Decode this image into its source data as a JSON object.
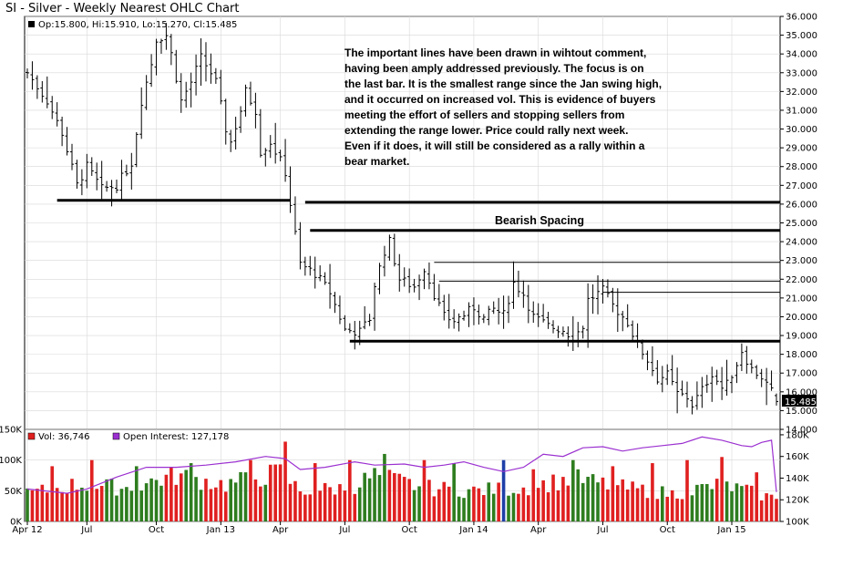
{
  "title": "SI - Silver - Weekly Nearest OHLC Chart",
  "ohlc_label": "Op:15.800, Hi:15.910, Lo:15.270, Cl:15.485",
  "last_price_label": "15.485",
  "note_lines": [
    "The important lines have been drawn in wihtout comment,",
    "having been amply addressed previously.  The focus is on",
    "the last bar.  It is the smallest range since the Jan swing high,",
    "and it occurred on increased vol.  This is evidence of buyers",
    "meeting the effort of sellers and stopping sellers from",
    "extending the range lower.  Price could rally next week.",
    "Even if it does, it will still be considered as a rally within a",
    "bear market."
  ],
  "bearish_spacing_label": "Bearish Spacing",
  "vol_legend": "Vol: 36,746",
  "oi_legend": "Open Interest: 127,178",
  "colors": {
    "up_volume": "#2e7d1f",
    "down_volume": "#e02020",
    "open_interest": "#9b30d0",
    "price_bars": "#000000",
    "neutral_volume": "#1f3fa8"
  },
  "chart_data": [
    {
      "type": "ohlc",
      "title": "SI - Silver - Weekly Nearest OHLC Chart",
      "ylim": [
        14,
        36
      ],
      "y_ticks": [
        "36.000",
        "35.000",
        "34.000",
        "33.000",
        "32.000",
        "31.000",
        "30.000",
        "29.000",
        "28.000",
        "27.000",
        "26.000",
        "25.000",
        "24.000",
        "23.000",
        "22.000",
        "21.000",
        "20.000",
        "19.000",
        "18.000",
        "17.000",
        "16.000",
        "15.000",
        "14.000"
      ],
      "x_ticks": [
        "Apr 12",
        "Jul",
        "Oct",
        "Jan 13",
        "Apr",
        "Jul",
        "Oct",
        "Jan 14",
        "Apr",
        "Jul",
        "Oct",
        "Jan 15"
      ],
      "x_tick_week": [
        0,
        12,
        26,
        39,
        51,
        64,
        77,
        90,
        103,
        116,
        129,
        142
      ],
      "weeks": 152,
      "anchors": [
        [
          0,
          33.0
        ],
        [
          4,
          31.5
        ],
        [
          7,
          29.8
        ],
        [
          10,
          27.0
        ],
        [
          12,
          28.0
        ],
        [
          15,
          26.8
        ],
        [
          18,
          27.0
        ],
        [
          21,
          28.2
        ],
        [
          23,
          31.5
        ],
        [
          25,
          33.5
        ],
        [
          26,
          34.8
        ],
        [
          28,
          35.0
        ],
        [
          29,
          34.0
        ],
        [
          31,
          31.5
        ],
        [
          33,
          32.5
        ],
        [
          35,
          33.8
        ],
        [
          37,
          33.0
        ],
        [
          38,
          32.5
        ],
        [
          40,
          30.0
        ],
        [
          41,
          29.3
        ],
        [
          43,
          31.0
        ],
        [
          44,
          32.0
        ],
        [
          46,
          31.0
        ],
        [
          47,
          28.8
        ],
        [
          49,
          29.3
        ],
        [
          51,
          28.3
        ],
        [
          52,
          27.7
        ],
        [
          53,
          26.0
        ],
        [
          55,
          22.8
        ],
        [
          58,
          22.3
        ],
        [
          61,
          21.3
        ],
        [
          64,
          19.3
        ],
        [
          67,
          19.2
        ],
        [
          69,
          19.9
        ],
        [
          70,
          21.7
        ],
        [
          72,
          23.5
        ],
        [
          73,
          24.0
        ],
        [
          75,
          22.0
        ],
        [
          78,
          21.6
        ],
        [
          80,
          22.6
        ],
        [
          82,
          21.2
        ],
        [
          84,
          20.0
        ],
        [
          86,
          19.8
        ],
        [
          88,
          20.1
        ],
        [
          90,
          20.5
        ],
        [
          92,
          19.9
        ],
        [
          94,
          20.4
        ],
        [
          96,
          20.1
        ],
        [
          98,
          21.8
        ],
        [
          100,
          21.2
        ],
        [
          102,
          20.0
        ],
        [
          105,
          19.5
        ],
        [
          108,
          19.3
        ],
        [
          110,
          18.9
        ],
        [
          112,
          19.5
        ],
        [
          113,
          20.9
        ],
        [
          116,
          21.4
        ],
        [
          118,
          20.6
        ],
        [
          121,
          19.7
        ],
        [
          123,
          18.5
        ],
        [
          125,
          17.7
        ],
        [
          127,
          16.7
        ],
        [
          129,
          16.9
        ],
        [
          131,
          15.9
        ],
        [
          133,
          15.7
        ],
        [
          134,
          15.3
        ],
        [
          136,
          16.1
        ],
        [
          138,
          17.0
        ],
        [
          140,
          16.2
        ],
        [
          141,
          16.4
        ],
        [
          143,
          17.5
        ],
        [
          144,
          18.2
        ],
        [
          146,
          17.2
        ],
        [
          148,
          16.8
        ],
        [
          150,
          16.0
        ],
        [
          151,
          15.485
        ]
      ],
      "last_bar": {
        "open": 15.8,
        "high": 15.91,
        "low": 15.27,
        "close": 15.485
      },
      "horizontal_lines": [
        {
          "value": 26.2,
          "from_week": 6,
          "to_week": 53,
          "weight": "heavy"
        },
        {
          "value": 26.1,
          "from_week": 56,
          "to_week": 152,
          "weight": "heavy"
        },
        {
          "value": 24.6,
          "from_week": 57,
          "to_week": 152,
          "weight": "heavy"
        },
        {
          "value": 18.7,
          "from_week": 65,
          "to_week": 152,
          "weight": "heavy"
        },
        {
          "value": 22.9,
          "from_week": 82,
          "to_week": 152,
          "weight": "thin"
        },
        {
          "value": 21.9,
          "from_week": 83,
          "to_week": 152,
          "weight": "thin"
        },
        {
          "value": 21.3,
          "from_week": 116,
          "to_week": 152,
          "weight": "thin"
        }
      ]
    },
    {
      "type": "bar",
      "title": "",
      "ylim": [
        0,
        150000
      ],
      "left_ticks": [
        "150K",
        "100K",
        "50K",
        "0K"
      ],
      "right_ticks": [
        "180K",
        "160K",
        "140K",
        "120K",
        "100K"
      ],
      "oi_range": [
        100000,
        185000
      ],
      "volume_anchors": [
        [
          0,
          45000
        ],
        [
          10,
          60000
        ],
        [
          20,
          55000
        ],
        [
          30,
          75000
        ],
        [
          40,
          60000
        ],
        [
          51,
          80000
        ],
        [
          55,
          50000
        ],
        [
          65,
          55000
        ],
        [
          70,
          75000
        ],
        [
          80,
          55000
        ],
        [
          90,
          50000
        ],
        [
          100,
          55000
        ],
        [
          110,
          70000
        ],
        [
          120,
          55000
        ],
        [
          130,
          45000
        ],
        [
          140,
          60000
        ],
        [
          151,
          36746
        ]
      ],
      "volume_spikes": [
        [
          5,
          90000
        ],
        [
          13,
          100000
        ],
        [
          22,
          90000
        ],
        [
          33,
          95000
        ],
        [
          45,
          100000
        ],
        [
          52,
          130000
        ],
        [
          58,
          95000
        ],
        [
          65,
          100000
        ],
        [
          72,
          110000
        ],
        [
          80,
          100000
        ],
        [
          86,
          95000
        ],
        [
          96,
          100000
        ],
        [
          102,
          85000
        ],
        [
          110,
          100000
        ],
        [
          118,
          90000
        ],
        [
          126,
          95000
        ],
        [
          133,
          100000
        ],
        [
          140,
          105000
        ],
        [
          147,
          80000
        ]
      ],
      "open_interest": [
        [
          0,
          130000
        ],
        [
          8,
          126000
        ],
        [
          12,
          130000
        ],
        [
          18,
          141000
        ],
        [
          24,
          150000
        ],
        [
          30,
          150000
        ],
        [
          36,
          152000
        ],
        [
          42,
          155000
        ],
        [
          48,
          160000
        ],
        [
          52,
          158000
        ],
        [
          55,
          148000
        ],
        [
          60,
          150000
        ],
        [
          66,
          155000
        ],
        [
          70,
          152000
        ],
        [
          76,
          153000
        ],
        [
          80,
          150000
        ],
        [
          84,
          152000
        ],
        [
          88,
          155000
        ],
        [
          92,
          150000
        ],
        [
          96,
          146000
        ],
        [
          100,
          150000
        ],
        [
          104,
          162000
        ],
        [
          108,
          160000
        ],
        [
          112,
          168000
        ],
        [
          116,
          169000
        ],
        [
          120,
          165000
        ],
        [
          124,
          168000
        ],
        [
          128,
          170000
        ],
        [
          132,
          172000
        ],
        [
          136,
          178000
        ],
        [
          140,
          175000
        ],
        [
          144,
          170000
        ],
        [
          146,
          169000
        ],
        [
          148,
          173000
        ],
        [
          150,
          175000
        ],
        [
          151,
          127178
        ]
      ]
    }
  ]
}
